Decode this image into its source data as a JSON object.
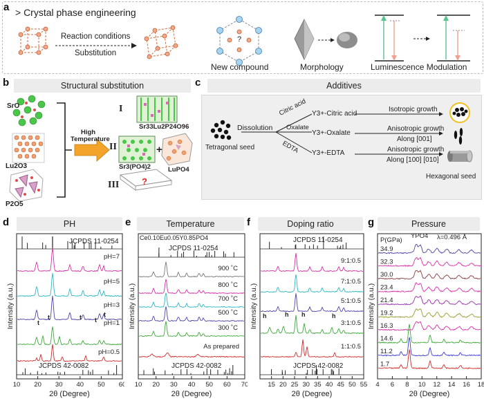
{
  "panel_a": {
    "letter": "a",
    "title": "> Crystal phase engineering",
    "arrow_label_top": "Reaction conditions",
    "arrow_label_bottom": "Substitution",
    "captions": [
      "New compound",
      "Morphology",
      "Luminescence Modulation"
    ],
    "question_mark": "?"
  },
  "panel_b": {
    "letter": "b",
    "title": "Structural substitution",
    "precursors": [
      "SrO",
      "Lu2O3",
      "P2O5"
    ],
    "arrow_text": [
      "High",
      "Temperature"
    ],
    "roman": [
      "I",
      "II",
      "III"
    ],
    "product_I": "Sr33Lu2P24O96",
    "product_II_a": "Sr3(PO4)2",
    "plus": "+",
    "product_II_b": "LuPO4",
    "product_III": "?"
  },
  "panel_c": {
    "letter": "c",
    "title": "Additives",
    "seed_label": "Tetragonal seed",
    "dissolution": "Dissolution",
    "additives": [
      "Citric acid",
      "Oxalate",
      "EDTA"
    ],
    "complexes": [
      "Y3+-Citric acid",
      "Y3+-Oxalate",
      "Y3+-EDTA"
    ],
    "growth": [
      "Isotropic growth",
      "Anisotropic growth",
      "Anisotropic growth"
    ],
    "along": [
      "Along [001]",
      "Along [100] [010]"
    ],
    "hex_label": "Hexagonal seed"
  },
  "chart_data": [
    {
      "type": "line",
      "panel": "d",
      "title": "PH",
      "xlabel": "2θ (Degree)",
      "ylabel": "Intensity (a.u.)",
      "xlim": [
        10,
        60
      ],
      "xticks": [
        10,
        20,
        30,
        40,
        50,
        60
      ],
      "reference_top": "JCPDS 11-0254",
      "reference_bottom": "JCPDS 42-0082",
      "series": [
        {
          "name": "pH=7",
          "color": "#d62fa8"
        },
        {
          "name": "pH=5",
          "color": "#2ab8c4"
        },
        {
          "name": "pH=3",
          "color": "#4a43a8"
        },
        {
          "name": "pH=1",
          "color": "#3aaa35"
        },
        {
          "name": "pH=0.5",
          "color": "#d42a2a"
        }
      ],
      "markers": [
        "t",
        "t",
        "t",
        "t",
        "t"
      ]
    },
    {
      "type": "line",
      "panel": "e",
      "title": "Temperature",
      "xlabel": "2θ (Degree)",
      "ylabel": "Intensity (a.u.)",
      "xlim": [
        10,
        70
      ],
      "xticks": [
        10,
        20,
        30,
        40,
        50,
        60,
        70
      ],
      "composition": "Ce0.10Eu0.05Y0.85PO4",
      "reference_top": "JCPDS 11-0254",
      "reference_bottom": "JCPDS 42-0082",
      "series": [
        {
          "name": "900 ˚C",
          "color": "#777777"
        },
        {
          "name": "800 ˚C",
          "color": "#d62fa8"
        },
        {
          "name": "700 ˚C",
          "color": "#2ab8c4"
        },
        {
          "name": "500 ˚C",
          "color": "#4a43a8"
        },
        {
          "name": "300 ˚C",
          "color": "#3aaa35"
        },
        {
          "name": "As prepared",
          "color": "#d42a2a"
        }
      ]
    },
    {
      "type": "line",
      "panel": "f",
      "title": "Doping ratio",
      "xlabel": "2θ (Degree)",
      "ylabel": "Intensity (a.u.)",
      "xlim": [
        10,
        55
      ],
      "xticks": [
        15,
        20,
        25,
        30,
        35,
        40,
        45,
        50,
        55
      ],
      "reference_top": "JCPDS 11-0254",
      "reference_bottom": "JCPDS 42-0082",
      "series": [
        {
          "name": "9:1:0.5",
          "color": "#d62fa8"
        },
        {
          "name": "7:1:0.5",
          "color": "#2ab8c4"
        },
        {
          "name": "5:1:0.5",
          "color": "#4a43a8"
        },
        {
          "name": "3:1:0.5",
          "color": "#3aaa35"
        },
        {
          "name": "1:1:0.5",
          "color": "#d42a2a"
        }
      ],
      "markers": [
        "h",
        "h",
        "h",
        "h"
      ]
    },
    {
      "type": "line",
      "panel": "g",
      "title": "Pressure",
      "xlabel": "2θ (Degree)",
      "ylabel": "Intensity (a.u.)",
      "xlim": [
        4,
        18
      ],
      "xticks": [
        4,
        6,
        8,
        10,
        12,
        14,
        16,
        18
      ],
      "legend_title": "P(GPa)",
      "compound": "YPO4",
      "wavelength": "λ=0.496 Å",
      "series": [
        {
          "name": "34.9",
          "color": "#4a43a8"
        },
        {
          "name": "32.3",
          "color": "#d62fa8"
        },
        {
          "name": "30.0",
          "color": "#8a3a3a"
        },
        {
          "name": "23.4",
          "color": "#d62fa8"
        },
        {
          "name": "21.4",
          "color": "#9a2ab0"
        },
        {
          "name": "19.2",
          "color": "#9a9a2a"
        },
        {
          "name": "16.3",
          "color": "#d62fa8"
        },
        {
          "name": "14.6",
          "color": "#3aaa35"
        },
        {
          "name": "11.2",
          "color": "#3a3ad8"
        },
        {
          "name": "1.7",
          "color": "#d42a2a"
        }
      ]
    }
  ]
}
